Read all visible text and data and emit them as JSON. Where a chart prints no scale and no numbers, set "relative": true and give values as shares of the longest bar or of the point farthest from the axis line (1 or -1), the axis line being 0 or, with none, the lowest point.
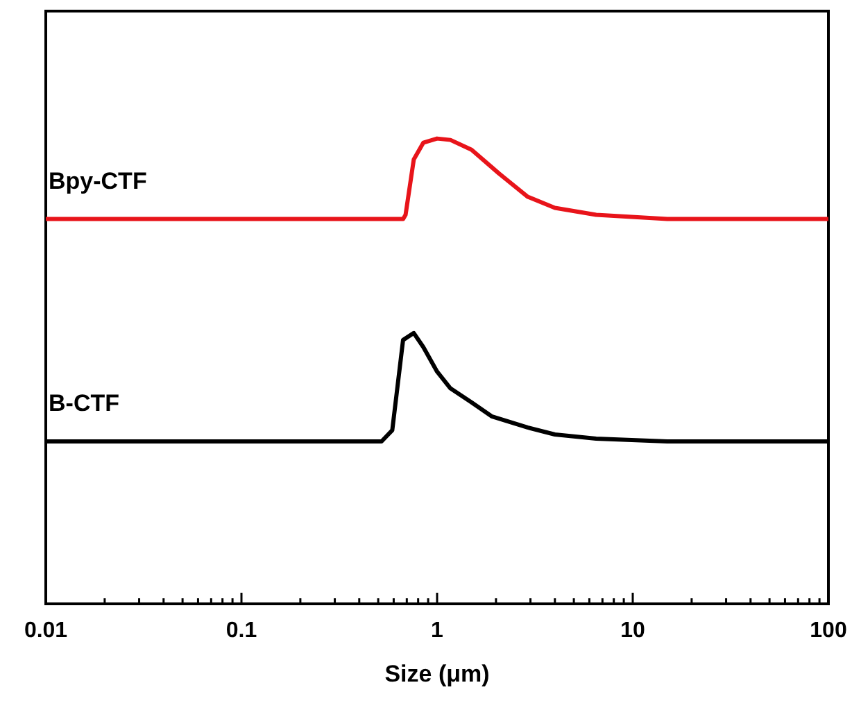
{
  "chart_data": {
    "type": "line",
    "relative": true,
    "xlabel": "Size (μm)",
    "log": "x",
    "xlim": [
      0.01,
      100
    ],
    "xticks": [
      0.01,
      {
        "value": 0.02,
        "label": null
      },
      {
        "value": 0.03,
        "label": null
      },
      {
        "value": 0.04,
        "label": null
      },
      {
        "value": 0.05,
        "label": null
      },
      {
        "value": 0.06,
        "label": null
      },
      {
        "value": 0.07,
        "label": null
      },
      {
        "value": 0.08,
        "label": null
      },
      {
        "value": 0.09,
        "label": null
      },
      0.1,
      {
        "value": 0.2,
        "label": null
      },
      {
        "value": 0.3,
        "label": null
      },
      {
        "value": 0.4,
        "label": null
      },
      {
        "value": 0.5,
        "label": null
      },
      {
        "value": 0.6,
        "label": null
      },
      {
        "value": 0.7,
        "label": null
      },
      {
        "value": 0.8,
        "label": null
      },
      {
        "value": 0.9,
        "label": null
      },
      1,
      {
        "value": 2,
        "label": null
      },
      {
        "value": 3,
        "label": null
      },
      {
        "value": 4,
        "label": null
      },
      {
        "value": 5,
        "label": null
      },
      {
        "value": 6,
        "label": null
      },
      {
        "value": 7,
        "label": null
      },
      {
        "value": 8,
        "label": null
      },
      {
        "value": 9,
        "label": null
      },
      10,
      {
        "value": 20,
        "label": null
      },
      {
        "value": 30,
        "label": null
      },
      {
        "value": 40,
        "label": null
      },
      {
        "value": 50,
        "label": null
      },
      {
        "value": 60,
        "label": null
      },
      {
        "value": 70,
        "label": null
      },
      {
        "value": 80,
        "label": null
      },
      {
        "value": 90,
        "label": null
      },
      100
    ],
    "grid": false,
    "marker": "none",
    "line_style": "solid",
    "series": [
      {
        "name": "Bpy-CTF",
        "color": "#e8141a",
        "x": [
          0.01,
          0.67,
          0.69,
          0.76,
          0.85,
          1.0,
          1.17,
          1.5,
          2.07,
          2.9,
          4.0,
          6.5,
          15,
          100
        ],
        "values": [
          0.827,
          0.827,
          0.836,
          0.955,
          0.991,
          1,
          0.997,
          0.976,
          0.925,
          0.875,
          0.851,
          0.836,
          0.827,
          0.827
        ]
      },
      {
        "name": "B-CTF",
        "color": "#000000",
        "x": [
          0.01,
          0.52,
          0.59,
          0.67,
          0.76,
          0.85,
          1.0,
          1.17,
          1.5,
          1.9,
          2.9,
          4.0,
          6.5,
          15,
          100
        ],
        "values": [
          0.349,
          0.349,
          0.373,
          0.567,
          0.582,
          0.552,
          0.499,
          0.463,
          0.433,
          0.403,
          0.379,
          0.364,
          0.355,
          0.349,
          0.349
        ]
      }
    ]
  }
}
